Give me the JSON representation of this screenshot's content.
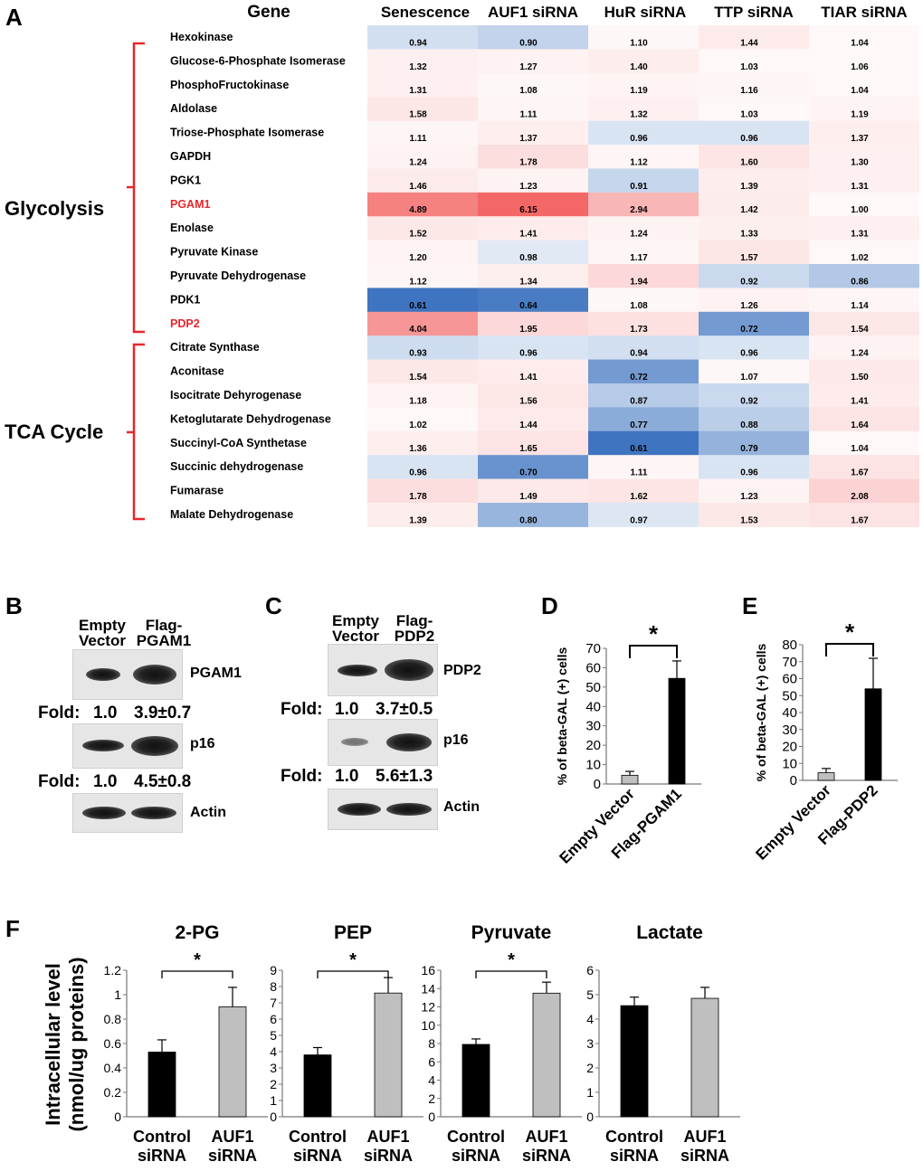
{
  "panels": {
    "A": "A",
    "B": "B",
    "C": "C",
    "D": "D",
    "E": "E",
    "F": "F"
  },
  "heatmap": {
    "gene_header": "Gene",
    "columns": [
      "Senescence",
      "AUF1 siRNA",
      "HuR siRNA",
      "TTP siRNA",
      "TIAR siRNA"
    ],
    "groups": [
      "Glycolysis",
      "TCA Cycle"
    ],
    "genes": [
      "Hexokinase",
      "Glucose-6-Phosphate  Isomerase",
      "PhosphoFructokinase",
      "Aldolase",
      "Triose-Phosphate  Isomerase",
      "GAPDH",
      "PGK1",
      "PGAM1",
      "Enolase",
      "Pyruvate Kinase",
      "Pyruvate Dehydrogenase",
      "PDK1",
      "PDP2",
      "Citrate Synthase",
      "Aconitase",
      "Isocitrate Dehyrogenase",
      "Ketoglutarate Dehydrogenase",
      "Succinyl-CoA  Synthetase",
      "Succinic dehydrogenase",
      "Fumarase",
      "Malate Dehydrogenase"
    ],
    "highlight_genes": [
      "PGAM1",
      "PDP2"
    ],
    "values": [
      [
        0.94,
        0.9,
        1.1,
        1.44,
        1.04
      ],
      [
        1.32,
        1.27,
        1.4,
        1.03,
        1.06
      ],
      [
        1.31,
        1.08,
        1.19,
        1.16,
        1.04
      ],
      [
        1.58,
        1.11,
        1.32,
        1.03,
        1.19
      ],
      [
        1.11,
        1.37,
        0.96,
        0.96,
        1.37
      ],
      [
        1.24,
        1.78,
        1.12,
        1.6,
        1.3
      ],
      [
        1.46,
        1.23,
        0.91,
        1.39,
        1.31
      ],
      [
        4.89,
        6.15,
        2.94,
        1.42,
        1.0
      ],
      [
        1.52,
        1.41,
        1.24,
        1.33,
        1.31
      ],
      [
        1.2,
        0.98,
        1.17,
        1.57,
        1.02
      ],
      [
        1.12,
        1.34,
        1.94,
        0.92,
        0.86
      ],
      [
        0.61,
        0.64,
        1.08,
        1.26,
        1.14
      ],
      [
        4.04,
        1.95,
        1.73,
        0.72,
        1.54
      ],
      [
        0.93,
        0.96,
        0.94,
        0.96,
        1.24
      ],
      [
        1.54,
        1.41,
        0.72,
        1.07,
        1.5
      ],
      [
        1.18,
        1.56,
        0.87,
        0.92,
        1.41
      ],
      [
        1.02,
        1.44,
        0.77,
        0.88,
        1.64
      ],
      [
        1.36,
        1.65,
        0.61,
        0.79,
        1.04
      ],
      [
        0.96,
        0.7,
        1.11,
        0.96,
        1.67
      ],
      [
        1.78,
        1.49,
        1.62,
        1.23,
        2.08
      ],
      [
        1.39,
        0.8,
        0.97,
        1.53,
        1.67
      ]
    ],
    "colors": {
      "low": "#3f75c0",
      "mid": "#ffffff",
      "high": "#f25c5c",
      "highlight": "#e8262a",
      "bracket": "#e8262a"
    }
  },
  "blotB": {
    "headers": [
      "Empty\nVector",
      "Flag-\nPGAM1"
    ],
    "rows": [
      {
        "label": "PGAM1",
        "fold": [
          "Fold:",
          "1.0",
          "3.9±0.7"
        ]
      },
      {
        "label": "p16",
        "fold": [
          "Fold:",
          "1.0",
          "4.5±0.8"
        ]
      },
      {
        "label": "Actin"
      }
    ]
  },
  "blotC": {
    "headers": [
      "Empty\nVector",
      "Flag-\nPDP2"
    ],
    "rows": [
      {
        "label": "PDP2",
        "fold": [
          "Fold:",
          "1.0",
          "3.7±0.5"
        ]
      },
      {
        "label": "p16",
        "fold": [
          "Fold:",
          "1.0",
          "5.6±1.3"
        ]
      },
      {
        "label": "Actin"
      }
    ]
  },
  "chart_data": [
    {
      "panel": "D",
      "type": "bar",
      "categories": [
        "Empty Vector",
        "Flag-PGAM1"
      ],
      "values": [
        4.5,
        54.5
      ],
      "errors": [
        2,
        9
      ],
      "colors": [
        "#bfbfbf",
        "#000000"
      ],
      "ylabel": "% of beta-GAL (+) cells",
      "ylim": [
        0,
        70
      ],
      "yticks": [
        0,
        10,
        20,
        30,
        40,
        50,
        60,
        70
      ],
      "annotation": "*"
    },
    {
      "panel": "E",
      "type": "bar",
      "categories": [
        "Empty Vector",
        "Flag-PDP2"
      ],
      "values": [
        4.5,
        54
      ],
      "errors": [
        2.5,
        18
      ],
      "colors": [
        "#bfbfbf",
        "#000000"
      ],
      "ylabel": "% of beta-GAL (+) cells",
      "ylim": [
        0,
        80
      ],
      "yticks": [
        0,
        10,
        20,
        30,
        40,
        50,
        60,
        70,
        80
      ],
      "annotation": "*"
    },
    {
      "panel": "F",
      "type": "bar",
      "title": "2-PG",
      "categories": [
        "Control\nsiRNA",
        "AUF1\nsiRNA"
      ],
      "values": [
        0.53,
        0.9
      ],
      "errors": [
        0.1,
        0.16
      ],
      "colors": [
        "#000000",
        "#bfbfbf"
      ],
      "ylabel": "Intracellular level (nmol/ug proteins)",
      "ylim": [
        0,
        1.2
      ],
      "yticks": [
        "0",
        "0.2",
        "0.4",
        "0.6",
        "0.8",
        "1",
        "1.2"
      ],
      "annotation": "*"
    },
    {
      "panel": "F",
      "type": "bar",
      "title": "PEP",
      "categories": [
        "Control\nsiRNA",
        "AUF1\nsiRNA"
      ],
      "values": [
        3.8,
        7.6
      ],
      "errors": [
        0.45,
        0.95
      ],
      "colors": [
        "#000000",
        "#bfbfbf"
      ],
      "ylim": [
        0,
        9
      ],
      "yticks": [
        "0",
        "1",
        "2",
        "3",
        "4",
        "5",
        "6",
        "7",
        "8",
        "9"
      ],
      "annotation": "*"
    },
    {
      "panel": "F",
      "type": "bar",
      "title": "Pyruvate",
      "categories": [
        "Control\nsiRNA",
        "AUF1\nsiRNA"
      ],
      "values": [
        7.9,
        13.5
      ],
      "errors": [
        0.6,
        1.2
      ],
      "colors": [
        "#000000",
        "#bfbfbf"
      ],
      "ylim": [
        0,
        16
      ],
      "yticks": [
        "0",
        "2",
        "4",
        "6",
        "8",
        "10",
        "12",
        "14",
        "16"
      ],
      "annotation": "*"
    },
    {
      "panel": "F",
      "type": "bar",
      "title": "Lactate",
      "categories": [
        "Control\nsiRNA",
        "AUF1\nsiRNA"
      ],
      "values": [
        4.55,
        4.85
      ],
      "errors": [
        0.35,
        0.45
      ],
      "colors": [
        "#000000",
        "#bfbfbf"
      ],
      "ylim": [
        0,
        6
      ],
      "yticks": [
        "0",
        "1",
        "2",
        "3",
        "4",
        "5",
        "6"
      ],
      "annotation": ""
    }
  ]
}
